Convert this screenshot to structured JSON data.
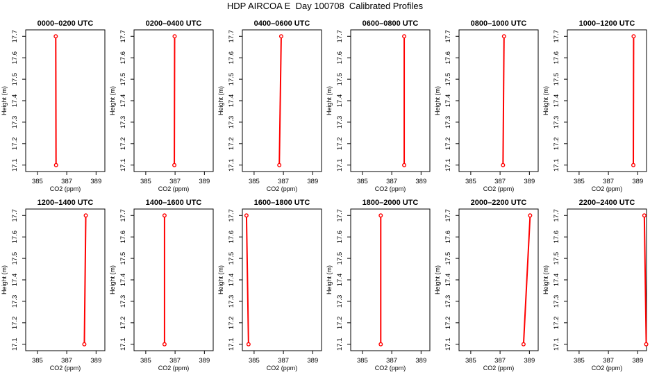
{
  "title": "HDP AIRCOA E  Day 100708  Calibrated Profiles",
  "colors": {
    "profile": "#ff0000",
    "axis": "#000000"
  },
  "chart_data": [
    {
      "type": "line",
      "title": "0000–0200 UTC",
      "xlabel": "CO2 (ppm)",
      "ylabel": "Height (m)",
      "xlim": [
        384.2,
        389.6
      ],
      "ylim": [
        17.07,
        17.73
      ],
      "xticks": [
        "385",
        "387",
        "389"
      ],
      "yticks": [
        "17.1",
        "17.2",
        "17.3",
        "17.4",
        "17.5",
        "17.6",
        "17.7"
      ],
      "x": [
        386.27,
        386.25
      ],
      "y": [
        17.1,
        17.7
      ]
    },
    {
      "type": "line",
      "title": "0200–0400 UTC",
      "xlabel": "CO2 (ppm)",
      "ylabel": "Height (m)",
      "xlim": [
        384.2,
        389.6
      ],
      "ylim": [
        17.07,
        17.73
      ],
      "xticks": [
        "385",
        "387",
        "389"
      ],
      "yticks": [
        "17.1",
        "17.2",
        "17.3",
        "17.4",
        "17.5",
        "17.6",
        "17.7"
      ],
      "x": [
        386.95,
        386.97
      ],
      "y": [
        17.1,
        17.7
      ]
    },
    {
      "type": "line",
      "title": "0400–0600 UTC",
      "xlabel": "CO2 (ppm)",
      "ylabel": "Height (m)",
      "xlim": [
        384.2,
        389.6
      ],
      "ylim": [
        17.07,
        17.73
      ],
      "xticks": [
        "385",
        "387",
        "389"
      ],
      "yticks": [
        "17.1",
        "17.2",
        "17.3",
        "17.4",
        "17.5",
        "17.6",
        "17.7"
      ],
      "x": [
        386.72,
        386.85
      ],
      "y": [
        17.1,
        17.7
      ]
    },
    {
      "type": "line",
      "title": "0600–0800 UTC",
      "xlabel": "CO2 (ppm)",
      "ylabel": "Height (m)",
      "xlim": [
        384.2,
        389.6
      ],
      "ylim": [
        17.07,
        17.73
      ],
      "xticks": [
        "385",
        "387",
        "389"
      ],
      "yticks": [
        "17.1",
        "17.2",
        "17.3",
        "17.4",
        "17.5",
        "17.6",
        "17.7"
      ],
      "x": [
        387.85,
        387.85
      ],
      "y": [
        17.1,
        17.7
      ]
    },
    {
      "type": "line",
      "title": "0800–1000 UTC",
      "xlabel": "CO2 (ppm)",
      "ylabel": "Height (m)",
      "xlim": [
        384.2,
        389.6
      ],
      "ylim": [
        17.07,
        17.73
      ],
      "xticks": [
        "385",
        "387",
        "389"
      ],
      "yticks": [
        "17.1",
        "17.2",
        "17.3",
        "17.4",
        "17.5",
        "17.6",
        "17.7"
      ],
      "x": [
        387.2,
        387.27
      ],
      "y": [
        17.1,
        17.7
      ]
    },
    {
      "type": "line",
      "title": "1000–1200 UTC",
      "xlabel": "CO2 (ppm)",
      "ylabel": "Height (m)",
      "xlim": [
        384.2,
        389.6
      ],
      "ylim": [
        17.07,
        17.73
      ],
      "xticks": [
        "385",
        "387",
        "389"
      ],
      "yticks": [
        "17.1",
        "17.2",
        "17.3",
        "17.4",
        "17.5",
        "17.6",
        "17.7"
      ],
      "x": [
        388.7,
        388.72
      ],
      "y": [
        17.1,
        17.7
      ]
    },
    {
      "type": "line",
      "title": "1200–1400 UTC",
      "xlabel": "CO2 (ppm)",
      "ylabel": "Height (m)",
      "xlim": [
        384.2,
        389.6
      ],
      "ylim": [
        17.07,
        17.73
      ],
      "xticks": [
        "385",
        "387",
        "389"
      ],
      "yticks": [
        "17.1",
        "17.2",
        "17.3",
        "17.4",
        "17.5",
        "17.6",
        "17.7"
      ],
      "x": [
        388.2,
        388.3
      ],
      "y": [
        17.1,
        17.7
      ]
    },
    {
      "type": "line",
      "title": "1400–1600 UTC",
      "xlabel": "CO2 (ppm)",
      "ylabel": "Height (m)",
      "xlim": [
        384.2,
        389.6
      ],
      "ylim": [
        17.07,
        17.73
      ],
      "xticks": [
        "385",
        "387",
        "389"
      ],
      "yticks": [
        "17.1",
        "17.2",
        "17.3",
        "17.4",
        "17.5",
        "17.6",
        "17.7"
      ],
      "x": [
        386.28,
        386.28
      ],
      "y": [
        17.1,
        17.7
      ]
    },
    {
      "type": "line",
      "title": "1600–1800 UTC",
      "xlabel": "CO2 (ppm)",
      "ylabel": "Height (m)",
      "xlim": [
        384.2,
        389.6
      ],
      "ylim": [
        17.07,
        17.73
      ],
      "xticks": [
        "385",
        "387",
        "389"
      ],
      "yticks": [
        "17.1",
        "17.2",
        "17.3",
        "17.4",
        "17.5",
        "17.6",
        "17.7"
      ],
      "x": [
        384.62,
        384.48
      ],
      "y": [
        17.1,
        17.7
      ]
    },
    {
      "type": "line",
      "title": "1800–2000 UTC",
      "xlabel": "CO2 (ppm)",
      "ylabel": "Height (m)",
      "xlim": [
        384.2,
        389.6
      ],
      "ylim": [
        17.07,
        17.73
      ],
      "xticks": [
        "385",
        "387",
        "389"
      ],
      "yticks": [
        "17.1",
        "17.2",
        "17.3",
        "17.4",
        "17.5",
        "17.6",
        "17.7"
      ],
      "x": [
        386.25,
        386.25
      ],
      "y": [
        17.1,
        17.7
      ]
    },
    {
      "type": "line",
      "title": "2000–2200 UTC",
      "xlabel": "CO2 (ppm)",
      "ylabel": "Height (m)",
      "xlim": [
        384.2,
        389.6
      ],
      "ylim": [
        17.07,
        17.73
      ],
      "xticks": [
        "385",
        "387",
        "389"
      ],
      "yticks": [
        "17.1",
        "17.2",
        "17.3",
        "17.4",
        "17.5",
        "17.6",
        "17.7"
      ],
      "x": [
        388.6,
        389.05
      ],
      "y": [
        17.1,
        17.7
      ]
    },
    {
      "type": "line",
      "title": "2200–2400 UTC",
      "xlabel": "CO2 (ppm)",
      "ylabel": "Height (m)",
      "xlim": [
        384.2,
        389.6
      ],
      "ylim": [
        17.07,
        17.73
      ],
      "xticks": [
        "385",
        "387",
        "389"
      ],
      "yticks": [
        "17.1",
        "17.2",
        "17.3",
        "17.4",
        "17.5",
        "17.6",
        "17.7"
      ],
      "x": [
        389.58,
        389.45
      ],
      "y": [
        17.1,
        17.7
      ]
    }
  ]
}
